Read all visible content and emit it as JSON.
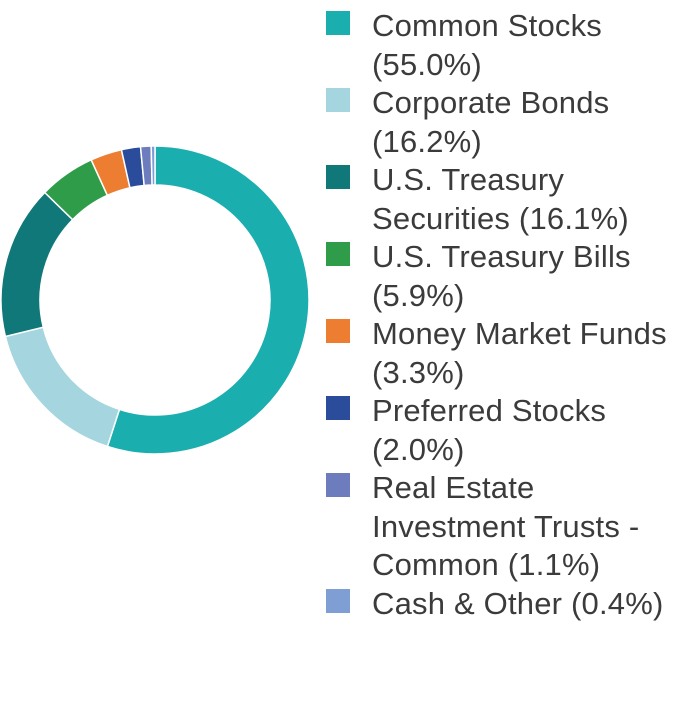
{
  "chart_data": {
    "type": "pie",
    "donut": true,
    "categories": [
      "Common Stocks",
      "Corporate Bonds",
      "U.S. Treasury Securities",
      "U.S. Treasury Bills",
      "Money Market Funds",
      "Preferred Stocks",
      "Real Estate Investment Trusts - Common",
      "Cash & Other"
    ],
    "values": [
      55.0,
      16.2,
      16.1,
      5.9,
      3.3,
      2.0,
      1.1,
      0.4
    ],
    "colors": [
      "#1aaeaf",
      "#a5d6df",
      "#11787a",
      "#2f9c49",
      "#ed7d31",
      "#2b4c9b",
      "#6c7cbd",
      "#7f9fd4"
    ],
    "legend_labels": [
      "Common Stocks (55.0%)",
      "Corporate Bonds (16.2%)",
      "U.S. Treasury Securities (16.1%)",
      "U.S. Treasury Bills (5.9%)",
      "Money Market Funds (3.3%)",
      "Preferred Stocks (2.0%)",
      "Real Estate Investment Trusts - Common (1.1%)",
      "Cash & Other (0.4%)"
    ],
    "legend_position": "right",
    "start_angle": "top",
    "direction": "clockwise"
  }
}
